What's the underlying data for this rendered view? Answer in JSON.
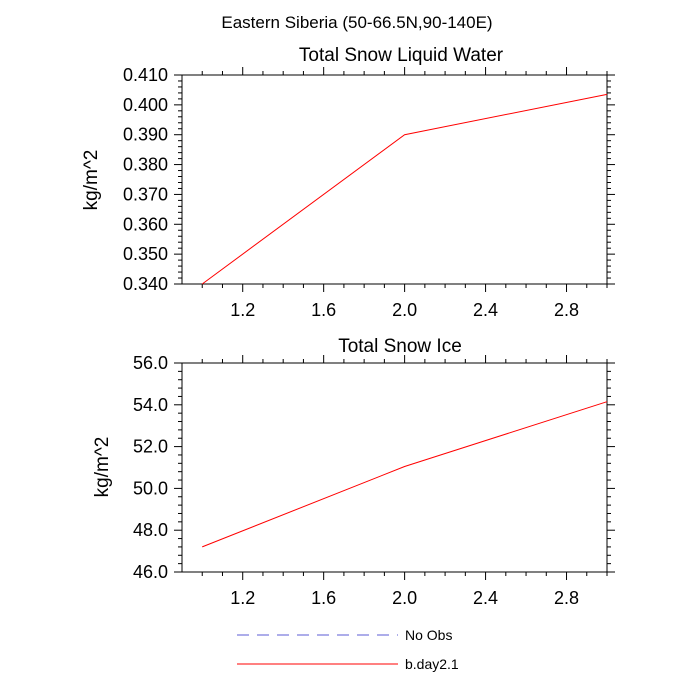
{
  "figure_title": "Eastern Siberia (50-66.5N,90-140E)",
  "legend": [
    {
      "label": "No Obs",
      "color": "#5b5bd6",
      "dash": "dashed"
    },
    {
      "label": "b.day2.1",
      "color": "#ff0000",
      "dash": "solid"
    }
  ],
  "chart_data": [
    {
      "type": "line",
      "title": "Total Snow Liquid Water",
      "xlabel": "",
      "ylabel": "kg/m^2",
      "xlim": [
        0.9,
        3.0
      ],
      "ylim": [
        0.34,
        0.41
      ],
      "xticks": [
        1.2,
        1.6,
        2.0,
        2.4,
        2.8
      ],
      "xtick_labels": [
        "1.2",
        "1.6",
        "2.0",
        "2.4",
        "2.8"
      ],
      "yticks": [
        0.34,
        0.35,
        0.36,
        0.37,
        0.38,
        0.39,
        0.4,
        0.41
      ],
      "ytick_labels": [
        "0.340",
        "0.350",
        "0.360",
        "0.370",
        "0.380",
        "0.390",
        "0.400",
        "0.410"
      ],
      "grid": false,
      "series": [
        {
          "name": "b.day2.1",
          "color": "#ff0000",
          "x": [
            1,
            2,
            3
          ],
          "y": [
            0.34,
            0.39,
            0.4035
          ]
        }
      ]
    },
    {
      "type": "line",
      "title": "Total Snow Ice",
      "xlabel": "",
      "ylabel": "kg/m^2",
      "xlim": [
        0.9,
        3.0
      ],
      "ylim": [
        46.0,
        56.0
      ],
      "xticks": [
        1.2,
        1.6,
        2.0,
        2.4,
        2.8
      ],
      "xtick_labels": [
        "1.2",
        "1.6",
        "2.0",
        "2.4",
        "2.8"
      ],
      "yticks": [
        46,
        48,
        50,
        52,
        54,
        56
      ],
      "ytick_labels": [
        "46.0",
        "48.0",
        "50.0",
        "52.0",
        "54.0",
        "56.0"
      ],
      "grid": false,
      "series": [
        {
          "name": "b.day2.1",
          "color": "#ff0000",
          "x": [
            1,
            2,
            3
          ],
          "y": [
            47.2,
            51.05,
            54.15
          ]
        }
      ]
    }
  ]
}
